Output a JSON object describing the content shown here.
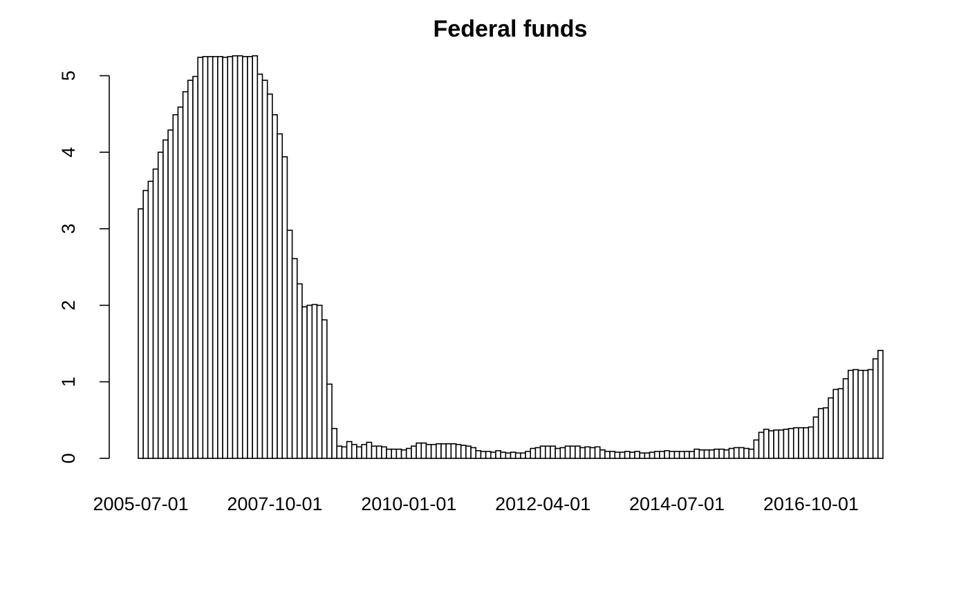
{
  "chart_data": {
    "type": "bar",
    "title": "Federal funds",
    "xlabel": "",
    "ylabel": "",
    "ylim": [
      0,
      5.3
    ],
    "y_ticks": [
      "0",
      "1",
      "2",
      "3",
      "4",
      "5"
    ],
    "x_tick_labels": [
      {
        "label": "2005-07-01",
        "index": 0
      },
      {
        "label": "2007-10-01",
        "index": 27
      },
      {
        "label": "2010-01-01",
        "index": 54
      },
      {
        "label": "2012-04-01",
        "index": 81
      },
      {
        "label": "2014-07-01",
        "index": 108
      },
      {
        "label": "2016-10-01",
        "index": 135
      }
    ],
    "grid": false,
    "legend": "none",
    "bar_pattern": "hatched",
    "x_start": "2005-07-01",
    "x_frequency": "monthly",
    "values": [
      3.26,
      3.5,
      3.62,
      3.78,
      4.0,
      4.16,
      4.29,
      4.49,
      4.59,
      4.79,
      4.94,
      4.99,
      5.24,
      5.25,
      5.25,
      5.25,
      5.25,
      5.24,
      5.25,
      5.26,
      5.26,
      5.25,
      5.25,
      5.26,
      5.02,
      4.94,
      4.76,
      4.49,
      4.24,
      3.94,
      2.98,
      2.61,
      2.28,
      1.98,
      2.0,
      2.01,
      2.0,
      1.81,
      0.97,
      0.39,
      0.16,
      0.15,
      0.22,
      0.18,
      0.15,
      0.18,
      0.21,
      0.16,
      0.16,
      0.15,
      0.12,
      0.12,
      0.12,
      0.11,
      0.13,
      0.16,
      0.2,
      0.2,
      0.18,
      0.18,
      0.19,
      0.19,
      0.19,
      0.19,
      0.18,
      0.17,
      0.16,
      0.14,
      0.1,
      0.09,
      0.09,
      0.08,
      0.1,
      0.08,
      0.07,
      0.08,
      0.07,
      0.07,
      0.09,
      0.13,
      0.14,
      0.16,
      0.16,
      0.16,
      0.13,
      0.14,
      0.16,
      0.16,
      0.16,
      0.14,
      0.15,
      0.14,
      0.15,
      0.11,
      0.09,
      0.09,
      0.08,
      0.08,
      0.09,
      0.08,
      0.09,
      0.07,
      0.07,
      0.08,
      0.09,
      0.09,
      0.1,
      0.09,
      0.09,
      0.09,
      0.09,
      0.09,
      0.12,
      0.11,
      0.11,
      0.11,
      0.12,
      0.12,
      0.11,
      0.13,
      0.14,
      0.14,
      0.13,
      0.12,
      0.24,
      0.34,
      0.38,
      0.36,
      0.37,
      0.37,
      0.38,
      0.39,
      0.4,
      0.4,
      0.4,
      0.41,
      0.54,
      0.65,
      0.66,
      0.79,
      0.9,
      0.91,
      1.04,
      1.15,
      1.16,
      1.15,
      1.15,
      1.16,
      1.3,
      1.41
    ]
  }
}
